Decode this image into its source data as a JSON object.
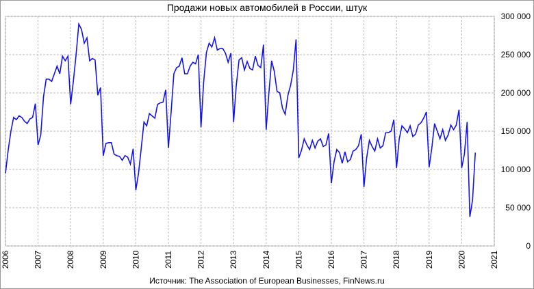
{
  "chart_data": {
    "type": "line",
    "title": "Продажи новых автомобилей в России, штук",
    "source": "Источник: The Association of European Businesses, FinNews.ru",
    "x": [
      2006,
      2006.083,
      2006.167,
      2006.25,
      2006.333,
      2006.417,
      2006.5,
      2006.583,
      2006.667,
      2006.75,
      2006.833,
      2006.917,
      2007,
      2007.083,
      2007.167,
      2007.25,
      2007.333,
      2007.417,
      2007.5,
      2007.583,
      2007.667,
      2007.75,
      2007.833,
      2007.917,
      2008,
      2008.083,
      2008.167,
      2008.25,
      2008.333,
      2008.417,
      2008.5,
      2008.583,
      2008.667,
      2008.75,
      2008.833,
      2008.917,
      2009,
      2009.083,
      2009.167,
      2009.25,
      2009.333,
      2009.417,
      2009.5,
      2009.583,
      2009.667,
      2009.75,
      2009.833,
      2009.917,
      2010,
      2010.083,
      2010.167,
      2010.25,
      2010.333,
      2010.417,
      2010.5,
      2010.583,
      2010.667,
      2010.75,
      2010.833,
      2010.917,
      2011,
      2011.083,
      2011.167,
      2011.25,
      2011.333,
      2011.417,
      2011.5,
      2011.583,
      2011.667,
      2011.75,
      2011.833,
      2011.917,
      2012,
      2012.083,
      2012.167,
      2012.25,
      2012.333,
      2012.417,
      2012.5,
      2012.583,
      2012.667,
      2012.75,
      2012.833,
      2012.917,
      2013,
      2013.083,
      2013.167,
      2013.25,
      2013.333,
      2013.417,
      2013.5,
      2013.583,
      2013.667,
      2013.75,
      2013.833,
      2013.917,
      2014,
      2014.083,
      2014.167,
      2014.25,
      2014.333,
      2014.417,
      2014.5,
      2014.583,
      2014.667,
      2014.75,
      2014.833,
      2014.917,
      2015,
      2015.083,
      2015.167,
      2015.25,
      2015.333,
      2015.417,
      2015.5,
      2015.583,
      2015.667,
      2015.75,
      2015.833,
      2015.917,
      2016,
      2016.083,
      2016.167,
      2016.25,
      2016.333,
      2016.417,
      2016.5,
      2016.583,
      2016.667,
      2016.75,
      2016.833,
      2016.917,
      2017,
      2017.083,
      2017.167,
      2017.25,
      2017.333,
      2017.417,
      2017.5,
      2017.583,
      2017.667,
      2017.75,
      2017.833,
      2017.917,
      2018,
      2018.083,
      2018.167,
      2018.25,
      2018.333,
      2018.417,
      2018.5,
      2018.583,
      2018.667,
      2018.75,
      2018.833,
      2018.917,
      2019,
      2019.083,
      2019.167,
      2019.25,
      2019.333,
      2019.417,
      2019.5,
      2019.583,
      2019.667,
      2019.75,
      2019.833,
      2019.917,
      2020,
      2020.083,
      2020.167,
      2020.25,
      2020.333,
      2020.417
    ],
    "series": [
      {
        "color": "#1414e6",
        "values": [
          95000,
          125000,
          150000,
          168000,
          165000,
          170000,
          168000,
          163000,
          160000,
          166000,
          168000,
          186000,
          132000,
          145000,
          195000,
          218000,
          218000,
          215000,
          225000,
          235000,
          225000,
          248000,
          242000,
          248000,
          185000,
          215000,
          250000,
          290000,
          283000,
          265000,
          272000,
          242000,
          245000,
          243000,
          197000,
          207000,
          118000,
          134000,
          135000,
          135000,
          120000,
          118000,
          117000,
          112000,
          118000,
          116000,
          107000,
          127000,
          73000,
          95000,
          128000,
          162000,
          157000,
          173000,
          170000,
          167000,
          185000,
          187000,
          188000,
          204000,
          128000,
          175000,
          225000,
          233000,
          235000,
          246000,
          225000,
          225000,
          235000,
          240000,
          238000,
          250000,
          155000,
          215000,
          253000,
          265000,
          260000,
          272000,
          256000,
          258000,
          258000,
          252000,
          240000,
          252000,
          162000,
          210000,
          243000,
          246000,
          230000,
          241000,
          232000,
          230000,
          248000,
          236000,
          233000,
          263000,
          152000,
          200000,
          242000,
          228000,
          202000,
          200000,
          180000,
          172000,
          197000,
          210000,
          230000,
          270000,
          115000,
          125000,
          140000,
          132000,
          126000,
          138000,
          128000,
          137000,
          140000,
          130000,
          132000,
          147000,
          82000,
          110000,
          126000,
          122000,
          108000,
          123000,
          110000,
          113000,
          124000,
          126000,
          131000,
          146000,
          77000,
          115000,
          138000,
          130000,
          124000,
          140000,
          128000,
          131000,
          148000,
          148000,
          150000,
          165000,
          102000,
          140000,
          157000,
          153000,
          148000,
          157000,
          143000,
          146000,
          158000,
          161000,
          167000,
          175000,
          103000,
          128000,
          160000,
          150000,
          140000,
          152000,
          138000,
          145000,
          158000,
          152000,
          158000,
          178000,
          102000,
          120000,
          162000,
          38000,
          60000,
          122000
        ]
      }
    ],
    "xlim": [
      2006,
      2021
    ],
    "xticks": [
      2006,
      2007,
      2008,
      2009,
      2010,
      2011,
      2012,
      2013,
      2014,
      2015,
      2016,
      2017,
      2018,
      2019,
      2020,
      2021
    ],
    "ylim": [
      0,
      300000
    ],
    "yticks": [
      0,
      {
        "value": 50000,
        "label": "50 000"
      },
      {
        "value": 100000,
        "label": "100 000"
      },
      {
        "value": 150000,
        "label": "150 000"
      },
      {
        "value": 200000,
        "label": "200 000"
      },
      {
        "value": 250000,
        "label": "250 000"
      },
      {
        "value": 300000,
        "label": "300 000"
      }
    ],
    "grid": true
  }
}
